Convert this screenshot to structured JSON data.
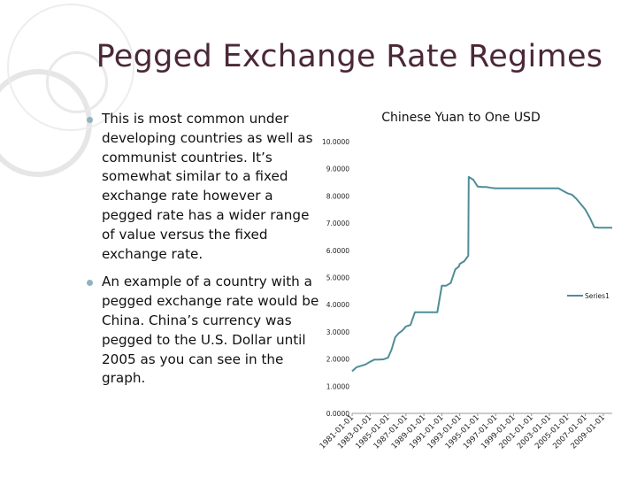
{
  "slide": {
    "title": "Pegged Exchange Rate Regimes",
    "bullets": [
      "This is most common under developing countries as well as communist countries. It’s somewhat similar to a fixed exchange rate however a pegged rate has a wider range of value versus the fixed exchange rate.",
      "An example of a country with a pegged exchange rate would be China. China’s currency was pegged to the U.S. Dollar until 2005 as you can see in the graph."
    ]
  },
  "colors": {
    "title": "#4b2838",
    "series": "#4f8d97",
    "bullet": "#8fb4c0"
  },
  "chart_data": {
    "type": "line",
    "title": "Chinese Yuan to One USD",
    "xlabel": "",
    "ylabel": "",
    "ylim": [
      0,
      10
    ],
    "ytick_labels": [
      "0.0000",
      "1.0000",
      "2.0000",
      "3.0000",
      "4.0000",
      "5.0000",
      "6.0000",
      "7.0000",
      "8.0000",
      "9.0000",
      "10.0000"
    ],
    "xlim": [
      1981.0,
      2010.0
    ],
    "xtick_labels": [
      "1981-01-01",
      "1983-01-01",
      "1985-01-01",
      "1987-01-01",
      "1989-01-01",
      "1991-01-01",
      "1993-01-01",
      "1995-01-01",
      "1997-01-01",
      "1999-01-01",
      "2001-01-01",
      "2003-01-01",
      "2005-01-01",
      "2007-01-01",
      "2009-01-01"
    ],
    "legend": {
      "position": "right",
      "entries": [
        "Series1"
      ]
    },
    "grid": false,
    "series": [
      {
        "name": "Series1",
        "x": [
          1981.0,
          1981.5,
          1982.0,
          1982.5,
          1983.0,
          1983.5,
          1984.0,
          1984.5,
          1985.0,
          1985.4,
          1985.8,
          1986.2,
          1986.6,
          1987.0,
          1987.5,
          1988.0,
          1988.5,
          1989.0,
          1989.9,
          1990.1,
          1990.5,
          1991.0,
          1991.5,
          1992.0,
          1992.5,
          1992.9,
          1993.0,
          1993.5,
          1993.95,
          1994.0,
          1994.5,
          1995.0,
          1995.5,
          1996.0,
          1996.5,
          1997.0,
          1998.0,
          1999.0,
          2000.0,
          2001.0,
          2002.0,
          2003.0,
          2004.0,
          2005.0,
          2005.5,
          2006.0,
          2006.5,
          2007.0,
          2007.5,
          2008.0,
          2008.5,
          2009.0,
          2009.5,
          2010.0
        ],
        "y": [
          1.55,
          1.7,
          1.75,
          1.8,
          1.9,
          1.98,
          1.98,
          1.99,
          2.05,
          2.35,
          2.8,
          2.95,
          3.05,
          3.2,
          3.25,
          3.72,
          3.72,
          3.72,
          3.72,
          3.72,
          3.72,
          4.7,
          4.7,
          4.8,
          5.3,
          5.4,
          5.5,
          5.6,
          5.8,
          8.7,
          8.6,
          8.35,
          8.33,
          8.33,
          8.3,
          8.28,
          8.28,
          8.28,
          8.28,
          8.28,
          8.28,
          8.28,
          8.28,
          8.1,
          8.05,
          7.9,
          7.7,
          7.5,
          7.2,
          6.85,
          6.83,
          6.83,
          6.83,
          6.83
        ]
      }
    ]
  }
}
